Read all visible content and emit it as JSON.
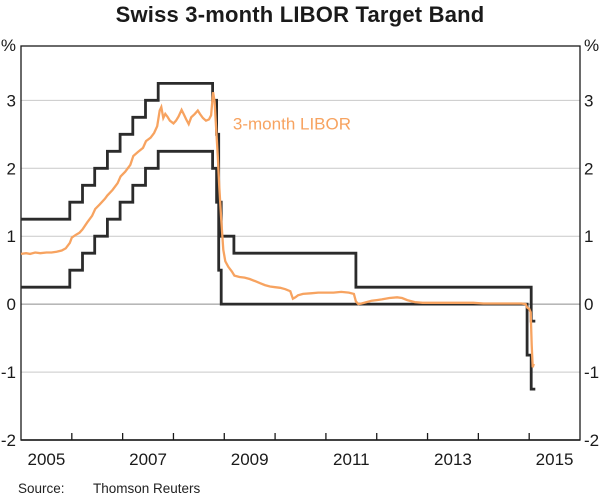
{
  "source": {
    "label": "Source:",
    "value": "Thomson Reuters"
  },
  "chart_data": {
    "type": "line",
    "title": "Swiss 3-month LIBOR Target Band",
    "y_unit": "%",
    "x_range": [
      2005,
      2016
    ],
    "y_range": [
      -2,
      3.8
    ],
    "y_gridlines": [
      3,
      2,
      1,
      0,
      -1
    ],
    "y_axis_labels": [
      "3",
      "2",
      "1",
      "0",
      "-1",
      "-2"
    ],
    "x_tick_years": [
      2006,
      2007,
      2008,
      2009,
      2010,
      2011,
      2012,
      2013,
      2014,
      2015
    ],
    "x_labels": [
      "2005",
      "2007",
      "2009",
      "2011",
      "2013",
      "2015"
    ],
    "grid_on": true,
    "legend_position": "none",
    "annotation": {
      "text": "3-month LIBOR",
      "x": 2009.17,
      "y": 2.57
    },
    "colors": {
      "band": "#2b2b2b",
      "libor": "#f7a360",
      "grid": "#c9c9c9",
      "zero_line": "#8c8c8c",
      "axis": "#1a1a1a",
      "text": "#1a1a1a"
    },
    "series": [
      {
        "id": "target-band-upper-line",
        "name": "Target band upper bound",
        "step": true,
        "width": 2.8,
        "color": "#2b2b2b",
        "x_end": 2015.12,
        "points": [
          [
            2005.0,
            1.25
          ],
          [
            2005.96,
            1.5
          ],
          [
            2006.21,
            1.75
          ],
          [
            2006.45,
            2.0
          ],
          [
            2006.7,
            2.25
          ],
          [
            2006.95,
            2.5
          ],
          [
            2007.2,
            2.75
          ],
          [
            2007.45,
            3.0
          ],
          [
            2007.7,
            3.25
          ],
          [
            2008.77,
            3.0
          ],
          [
            2008.85,
            2.5
          ],
          [
            2008.89,
            1.5
          ],
          [
            2008.94,
            1.0
          ],
          [
            2009.19,
            0.75
          ],
          [
            2011.59,
            0.25
          ],
          [
            2015.04,
            -0.25
          ]
        ]
      },
      {
        "id": "target-band-lower-line",
        "name": "Target band lower bound",
        "step": true,
        "width": 2.8,
        "color": "#2b2b2b",
        "x_end": 2015.12,
        "points": [
          [
            2005.0,
            0.25
          ],
          [
            2005.96,
            0.5
          ],
          [
            2006.21,
            0.75
          ],
          [
            2006.45,
            1.0
          ],
          [
            2006.7,
            1.25
          ],
          [
            2006.95,
            1.5
          ],
          [
            2007.2,
            1.75
          ],
          [
            2007.45,
            2.0
          ],
          [
            2007.7,
            2.25
          ],
          [
            2008.77,
            2.0
          ],
          [
            2008.85,
            1.5
          ],
          [
            2008.89,
            0.5
          ],
          [
            2008.94,
            0.0
          ],
          [
            2014.96,
            -0.75
          ],
          [
            2015.04,
            -1.25
          ]
        ]
      },
      {
        "id": "libor-line",
        "name": "3-month LIBOR",
        "step": false,
        "width": 2.3,
        "color": "#f7a360",
        "points": [
          [
            2005.0,
            0.74
          ],
          [
            2005.1,
            0.75
          ],
          [
            2005.18,
            0.74
          ],
          [
            2005.28,
            0.76
          ],
          [
            2005.38,
            0.75
          ],
          [
            2005.5,
            0.76
          ],
          [
            2005.6,
            0.76
          ],
          [
            2005.7,
            0.77
          ],
          [
            2005.8,
            0.79
          ],
          [
            2005.88,
            0.82
          ],
          [
            2005.96,
            0.9
          ],
          [
            2006.0,
            0.98
          ],
          [
            2006.08,
            1.02
          ],
          [
            2006.15,
            1.05
          ],
          [
            2006.21,
            1.1
          ],
          [
            2006.3,
            1.2
          ],
          [
            2006.4,
            1.3
          ],
          [
            2006.46,
            1.4
          ],
          [
            2006.55,
            1.47
          ],
          [
            2006.65,
            1.55
          ],
          [
            2006.7,
            1.6
          ],
          [
            2006.8,
            1.68
          ],
          [
            2006.9,
            1.78
          ],
          [
            2006.96,
            1.88
          ],
          [
            2007.05,
            1.95
          ],
          [
            2007.15,
            2.05
          ],
          [
            2007.21,
            2.18
          ],
          [
            2007.3,
            2.24
          ],
          [
            2007.4,
            2.3
          ],
          [
            2007.46,
            2.4
          ],
          [
            2007.55,
            2.45
          ],
          [
            2007.62,
            2.52
          ],
          [
            2007.68,
            2.62
          ],
          [
            2007.73,
            2.85
          ],
          [
            2007.76,
            2.9
          ],
          [
            2007.8,
            2.74
          ],
          [
            2007.84,
            2.8
          ],
          [
            2007.88,
            2.76
          ],
          [
            2007.93,
            2.7
          ],
          [
            2008.0,
            2.66
          ],
          [
            2008.05,
            2.7
          ],
          [
            2008.1,
            2.76
          ],
          [
            2008.16,
            2.86
          ],
          [
            2008.2,
            2.8
          ],
          [
            2008.25,
            2.72
          ],
          [
            2008.3,
            2.65
          ],
          [
            2008.35,
            2.75
          ],
          [
            2008.42,
            2.8
          ],
          [
            2008.48,
            2.85
          ],
          [
            2008.52,
            2.8
          ],
          [
            2008.58,
            2.74
          ],
          [
            2008.64,
            2.7
          ],
          [
            2008.7,
            2.72
          ],
          [
            2008.74,
            2.78
          ],
          [
            2008.78,
            3.12
          ],
          [
            2008.81,
            2.98
          ],
          [
            2008.84,
            2.6
          ],
          [
            2008.87,
            2.2
          ],
          [
            2008.9,
            1.75
          ],
          [
            2008.94,
            1.25
          ],
          [
            2008.98,
            0.8
          ],
          [
            2009.02,
            0.63
          ],
          [
            2009.08,
            0.55
          ],
          [
            2009.15,
            0.48
          ],
          [
            2009.2,
            0.42
          ],
          [
            2009.3,
            0.4
          ],
          [
            2009.4,
            0.39
          ],
          [
            2009.5,
            0.37
          ],
          [
            2009.6,
            0.34
          ],
          [
            2009.7,
            0.31
          ],
          [
            2009.8,
            0.28
          ],
          [
            2009.9,
            0.26
          ],
          [
            2010.0,
            0.25
          ],
          [
            2010.1,
            0.24
          ],
          [
            2010.2,
            0.22
          ],
          [
            2010.3,
            0.19
          ],
          [
            2010.35,
            0.08
          ],
          [
            2010.4,
            0.1
          ],
          [
            2010.45,
            0.13
          ],
          [
            2010.55,
            0.15
          ],
          [
            2010.7,
            0.16
          ],
          [
            2010.85,
            0.17
          ],
          [
            2011.0,
            0.17
          ],
          [
            2011.15,
            0.17
          ],
          [
            2011.3,
            0.18
          ],
          [
            2011.45,
            0.17
          ],
          [
            2011.55,
            0.15
          ],
          [
            2011.59,
            0.04
          ],
          [
            2011.64,
            0.0
          ],
          [
            2011.7,
            0.01
          ],
          [
            2011.8,
            0.03
          ],
          [
            2011.9,
            0.05
          ],
          [
            2012.0,
            0.06
          ],
          [
            2012.1,
            0.07
          ],
          [
            2012.25,
            0.09
          ],
          [
            2012.4,
            0.1
          ],
          [
            2012.5,
            0.09
          ],
          [
            2012.6,
            0.06
          ],
          [
            2012.75,
            0.03
          ],
          [
            2012.9,
            0.02
          ],
          [
            2013.1,
            0.02
          ],
          [
            2013.3,
            0.02
          ],
          [
            2013.5,
            0.02
          ],
          [
            2013.7,
            0.02
          ],
          [
            2013.9,
            0.02
          ],
          [
            2014.1,
            0.01
          ],
          [
            2014.3,
            0.01
          ],
          [
            2014.5,
            0.01
          ],
          [
            2014.7,
            0.01
          ],
          [
            2014.85,
            0.01
          ],
          [
            2014.93,
            0.0
          ],
          [
            2014.96,
            -0.05
          ],
          [
            2015.0,
            -0.07
          ],
          [
            2015.03,
            -0.12
          ],
          [
            2015.05,
            -0.6
          ],
          [
            2015.07,
            -0.93
          ],
          [
            2015.09,
            -0.88
          ]
        ]
      }
    ]
  }
}
